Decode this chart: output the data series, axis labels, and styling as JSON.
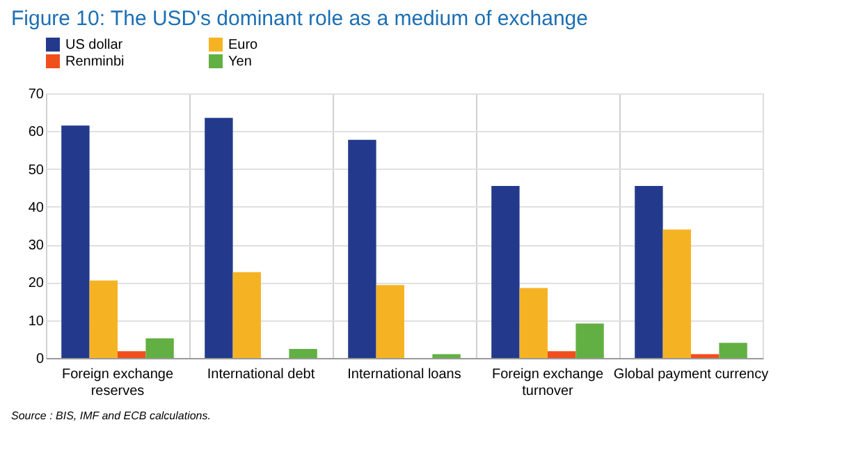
{
  "chart_data": {
    "type": "bar",
    "title": "Figure 10: The USD's dominant role as a medium of exchange",
    "categories": [
      "Foreign exchange reserves",
      "International debt",
      "International loans",
      "Foreign exchange turnover",
      "Global payment currency"
    ],
    "series": [
      {
        "name": "US dollar",
        "color": "#233a8c",
        "values": [
          61.5,
          63.5,
          57.7,
          45.5,
          45.5
        ]
      },
      {
        "name": "Euro",
        "color": "#f5b324",
        "values": [
          20.5,
          22.7,
          19.3,
          18.5,
          34
        ]
      },
      {
        "name": "Renminbi",
        "color": "#f04e1c",
        "values": [
          1.8,
          null,
          null,
          1.8,
          1
        ]
      },
      {
        "name": "Yen",
        "color": "#62b043",
        "values": [
          5.2,
          2.4,
          1,
          9.1,
          4
        ]
      }
    ],
    "ylim": [
      0,
      70
    ],
    "yticks": [
      0,
      10,
      20,
      30,
      40,
      50,
      60,
      70
    ],
    "grid": true,
    "legend": "top left",
    "annotations": [
      "Source : BIS, IMF and ECB calculations."
    ]
  }
}
